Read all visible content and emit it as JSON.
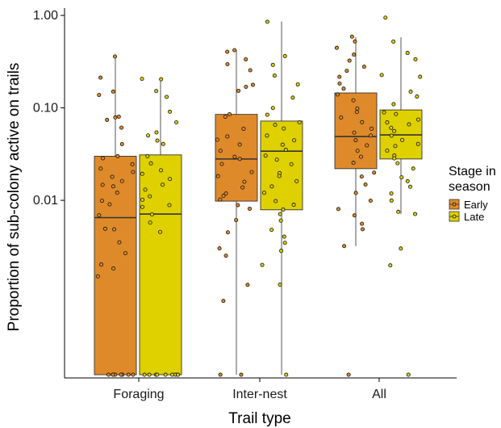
{
  "chart_data": {
    "type": "box",
    "xlabel": "Trail type",
    "ylabel": "Proportion of sub-colony active on trails",
    "y_scale": "log",
    "ylim": [
      0.00012,
      1.2
    ],
    "yticks": [
      {
        "value": 1.0,
        "label": "1.00"
      },
      {
        "value": 0.1,
        "label": "0.10"
      },
      {
        "value": 0.01,
        "label": "0.01"
      }
    ],
    "categories": [
      "Foraging",
      "Inter-nest",
      "All"
    ],
    "legend": {
      "title_lines": [
        "Stage in",
        "season"
      ],
      "position": "right"
    },
    "colors": {
      "Early": "#df8a2a",
      "Late": "#dfd000"
    },
    "zero_floor": 0.00013,
    "series": [
      {
        "name": "Early",
        "boxes": [
          {
            "category": "Foraging",
            "whisker_low": 0.00013,
            "q1": 0.00013,
            "median": 0.0065,
            "q3": 0.03,
            "whisker_high": 0.36,
            "points": [
              0.36,
              0.21,
              0.15,
              0.14,
              0.08,
              0.075,
              0.06,
              0.078,
              0.04,
              0.03,
              0.028,
              0.025,
              0.022,
              0.02,
              0.018,
              0.016,
              0.015,
              0.014,
              0.012,
              0.01,
              0.009,
              0.007,
              0.005,
              0.0048,
              0.0035,
              0.0027,
              0.002,
              0.0018,
              0.0015,
              0.00013,
              0.00013,
              0.00013,
              0.00013,
              0.00013,
              0.00013,
              0.00013,
              0.00013
            ]
          },
          {
            "category": "Inter-nest",
            "whisker_low": 0.00013,
            "q1": 0.0098,
            "median": 0.028,
            "q3": 0.085,
            "whisker_high": 0.42,
            "points": [
              0.42,
              0.4,
              0.33,
              0.3,
              0.26,
              0.18,
              0.17,
              0.15,
              0.085,
              0.08,
              0.06,
              0.05,
              0.045,
              0.04,
              0.035,
              0.03,
              0.028,
              0.025,
              0.02,
              0.018,
              0.016,
              0.014,
              0.012,
              0.011,
              0.01,
              0.009,
              0.008,
              0.006,
              0.0045,
              0.003,
              0.0025,
              0.0012,
              0.0008,
              0.00013,
              0.00013
            ]
          },
          {
            "category": "All",
            "whisker_low": 0.0032,
            "q1": 0.022,
            "median": 0.049,
            "q3": 0.145,
            "whisker_high": 0.58,
            "points": [
              0.58,
              0.52,
              0.45,
              0.38,
              0.33,
              0.28,
              0.25,
              0.22,
              0.18,
              0.16,
              0.14,
              0.12,
              0.1,
              0.09,
              0.08,
              0.07,
              0.06,
              0.055,
              0.05,
              0.045,
              0.04,
              0.035,
              0.03,
              0.025,
              0.02,
              0.018,
              0.015,
              0.012,
              0.01,
              0.008,
              0.007,
              0.0055,
              0.0048,
              0.0032,
              0.00013
            ]
          }
        ]
      },
      {
        "name": "Late",
        "boxes": [
          {
            "category": "Foraging",
            "whisker_low": 0.00013,
            "q1": 0.00013,
            "median": 0.0071,
            "q3": 0.031,
            "whisker_high": 0.21,
            "points": [
              0.21,
              0.2,
              0.15,
              0.13,
              0.09,
              0.07,
              0.055,
              0.05,
              0.045,
              0.04,
              0.03,
              0.025,
              0.021,
              0.019,
              0.017,
              0.015,
              0.013,
              0.011,
              0.01,
              0.009,
              0.0085,
              0.007,
              0.0058,
              0.0045,
              0.00013,
              0.00013,
              0.00013,
              0.00013,
              0.00013,
              0.00013,
              0.00013,
              0.00013,
              0.00013
            ]
          },
          {
            "category": "Inter-nest",
            "whisker_low": 0.00013,
            "q1": 0.0079,
            "median": 0.034,
            "q3": 0.072,
            "whisker_high": 0.86,
            "points": [
              0.86,
              0.37,
              0.29,
              0.22,
              0.18,
              0.13,
              0.1,
              0.085,
              0.07,
              0.065,
              0.06,
              0.05,
              0.045,
              0.04,
              0.035,
              0.03,
              0.028,
              0.025,
              0.02,
              0.018,
              0.016,
              0.014,
              0.012,
              0.01,
              0.009,
              0.0078,
              0.007,
              0.006,
              0.0048,
              0.004,
              0.0035,
              0.0028,
              0.002,
              0.0012,
              0.00013
            ]
          },
          {
            "category": "All",
            "whisker_low": 0.0071,
            "q1": 0.028,
            "median": 0.051,
            "q3": 0.095,
            "whisker_high": 0.58,
            "points": [
              0.93,
              0.52,
              0.4,
              0.33,
              0.23,
              0.22,
              0.15,
              0.13,
              0.11,
              0.09,
              0.085,
              0.075,
              0.07,
              0.065,
              0.06,
              0.055,
              0.05,
              0.045,
              0.04,
              0.038,
              0.034,
              0.03,
              0.028,
              0.025,
              0.022,
              0.018,
              0.016,
              0.014,
              0.012,
              0.01,
              0.0075,
              0.007,
              0.003,
              0.002,
              0.00013
            ]
          }
        ]
      }
    ]
  }
}
